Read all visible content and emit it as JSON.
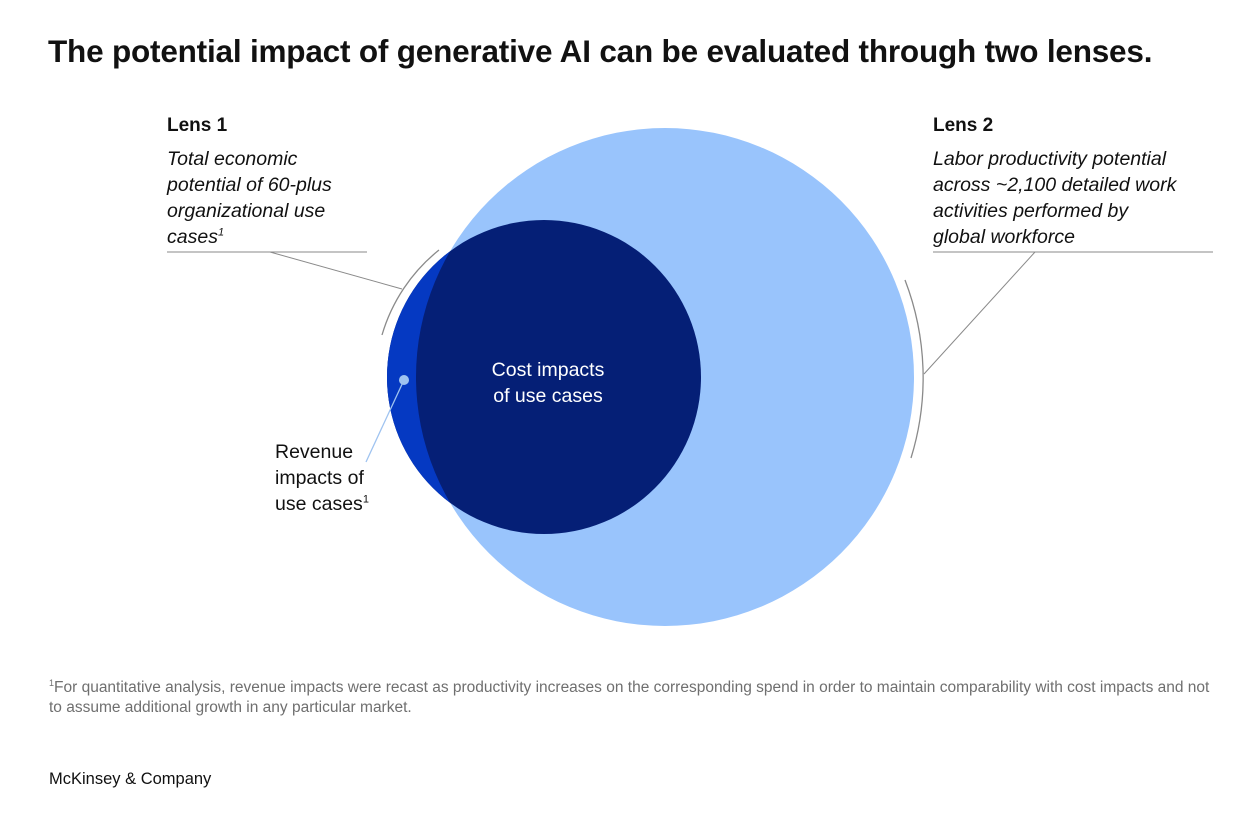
{
  "title": "The potential impact of generative AI can be evaluated through two lenses.",
  "lens1": {
    "heading": "Lens 1",
    "description_lines": [
      "Total economic",
      "potential of 60-plus",
      "organizational use",
      "cases"
    ],
    "footnote_marker": "1"
  },
  "lens2": {
    "heading": "Lens 2",
    "description_lines": [
      "Labor productivity potential",
      "across ~2,100 detailed work",
      "activities performed by",
      "global workforce"
    ]
  },
  "circles": {
    "cost_label_lines": [
      "Cost impacts",
      "of use cases"
    ],
    "revenue_label_lines": [
      "Revenue",
      "impacts of",
      "use cases"
    ],
    "revenue_footnote_marker": "1"
  },
  "colors": {
    "lens2_circle": "#99c4fc",
    "cost_circle": "#051f76",
    "revenue_circle": "#0539c2",
    "leader_line": "#8a8a8a",
    "revenue_pointer": "#9fc3f0"
  },
  "footnote": {
    "marker": "1",
    "text": "For quantitative analysis, revenue impacts were recast as productivity increases on the corresponding spend in order to maintain comparability with cost impacts and not to assume additional growth in any particular market."
  },
  "brand": "McKinsey & Company"
}
